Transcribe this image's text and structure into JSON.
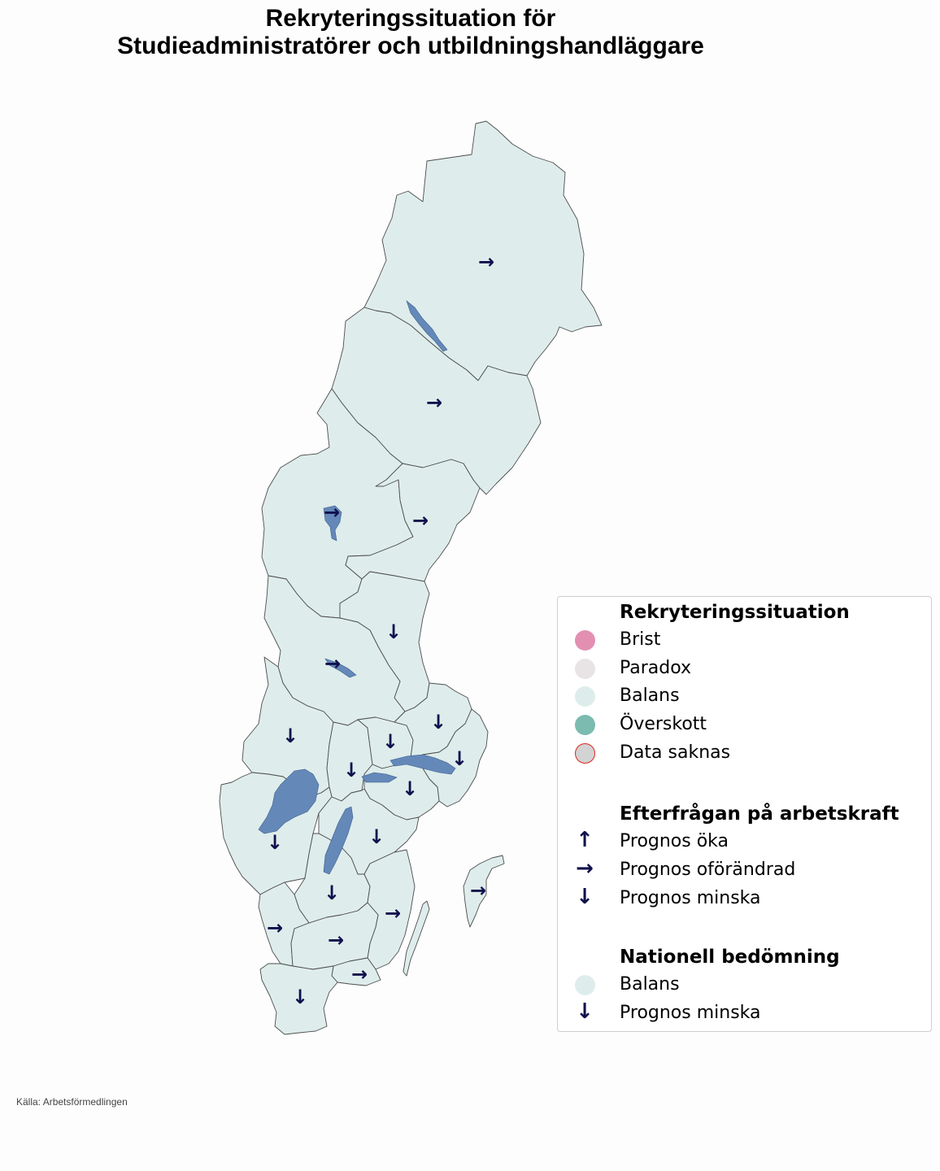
{
  "title": {
    "line1": "Rekryteringssituation för",
    "line2": "Studieadministratörer och utbildningshandläggare"
  },
  "colors": {
    "brist": "#e28fb2",
    "paradox": "#e8e4e6",
    "balans": "#deedeb",
    "overskott": "#7bbbb0",
    "data_saknas_fill": "#d3d3d3",
    "data_saknas_border": "#e0241b",
    "arrow": "#10104d",
    "water": "#6488b8"
  },
  "map": {
    "status_all_regions": "Balans",
    "arrows": [
      {
        "icon": "arrow-right-icon",
        "glyph": "→",
        "meaning": "Prognos oförändrad"
      },
      {
        "icon": "arrow-down-icon",
        "glyph": "↓",
        "meaning": "Prognos minska"
      }
    ]
  },
  "legend": {
    "section1": {
      "heading": "Rekryteringssituation",
      "items": [
        {
          "label": "Brist"
        },
        {
          "label": "Paradox"
        },
        {
          "label": "Balans"
        },
        {
          "label": "Överskott"
        },
        {
          "label": "Data saknas"
        }
      ]
    },
    "section2": {
      "heading": "Efterfrågan på arbetskraft",
      "items": [
        {
          "glyph": "↑",
          "icon": "arrow-up-icon",
          "label": "Prognos öka"
        },
        {
          "glyph": "→",
          "icon": "arrow-right-icon",
          "label": "Prognos oförändrad"
        },
        {
          "glyph": "↓",
          "icon": "arrow-down-icon",
          "label": "Prognos minska"
        }
      ]
    },
    "section3": {
      "heading": "Nationell bedömning",
      "items": [
        {
          "label": "Balans"
        },
        {
          "glyph": "↓",
          "icon": "arrow-down-icon",
          "label": "Prognos minska"
        }
      ]
    }
  },
  "source": "Källa: Arbetsförmedlingen"
}
